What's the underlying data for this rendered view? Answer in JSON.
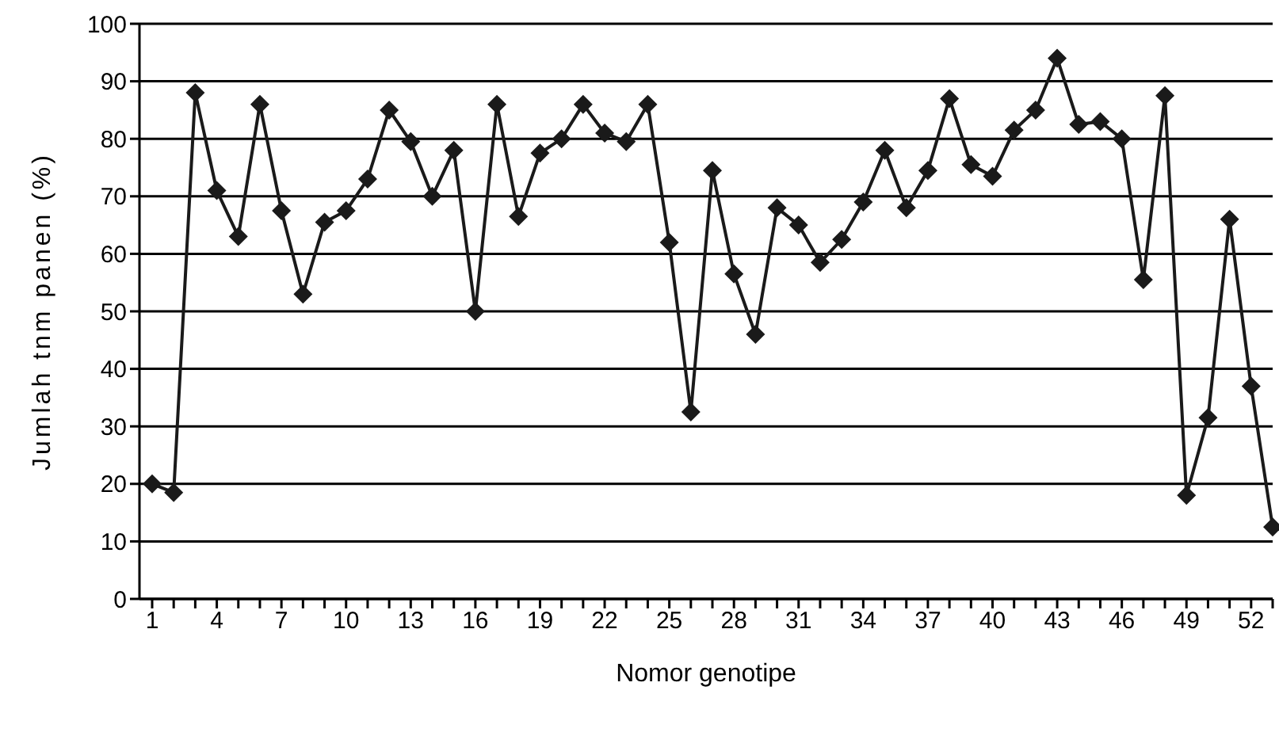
{
  "chart_data": {
    "type": "line",
    "xlabel": "Nomor genotipe",
    "ylabel": "Jumlah tnm panen (%)",
    "categories": [
      "1",
      null,
      null,
      "4",
      null,
      null,
      "7",
      null,
      null,
      "10",
      null,
      null,
      "13",
      null,
      null,
      "16",
      null,
      null,
      "19",
      null,
      null,
      "22",
      null,
      null,
      "25",
      null,
      null,
      "28",
      null,
      null,
      "31",
      null,
      null,
      "34",
      null,
      null,
      "37",
      null,
      null,
      "40",
      null,
      null,
      "43",
      null,
      null,
      "46",
      null,
      null,
      "49",
      null,
      null,
      "52",
      null
    ],
    "series": [
      {
        "color": "#1a1a1a",
        "values": [
          20,
          18.5,
          88,
          71,
          63,
          86,
          67.5,
          53,
          65.5,
          67.5,
          73,
          85,
          79.5,
          70,
          78,
          50,
          86,
          66.5,
          77.5,
          80,
          86,
          81,
          79.5,
          86,
          62,
          32.5,
          74.5,
          56.5,
          46,
          68,
          65,
          58.5,
          62.5,
          69,
          78,
          68,
          74.5,
          87,
          75.5,
          73.5,
          81.5,
          85,
          94,
          82.5,
          83,
          80,
          55.5,
          87.5,
          18,
          31.5,
          66,
          37,
          12.5
        ]
      }
    ],
    "ylim": [
      0,
      100
    ],
    "yticks": [
      0,
      10,
      20,
      30,
      40,
      50,
      60,
      70,
      80,
      90,
      100
    ],
    "grid": "y",
    "marker": "diamond",
    "line_style": "solid"
  }
}
